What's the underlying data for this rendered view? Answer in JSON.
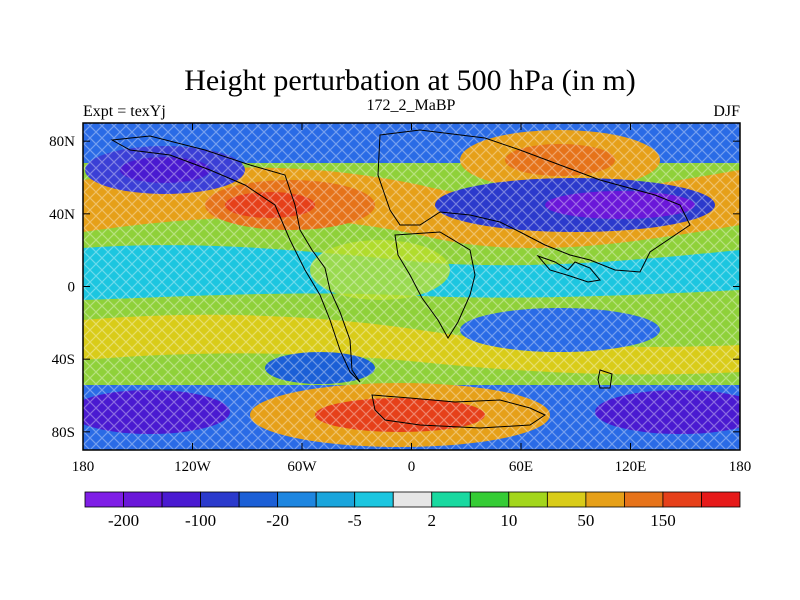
{
  "title": "Height perturbation at 500 hPa (in m)",
  "left_label": "Expt = texYj",
  "center_label": "172_2_MaBP",
  "right_label": "DJF",
  "x_ticks": [
    {
      "lon": -180,
      "label": "180"
    },
    {
      "lon": -120,
      "label": "120W"
    },
    {
      "lon": -60,
      "label": "60W"
    },
    {
      "lon": 0,
      "label": "0"
    },
    {
      "lon": 60,
      "label": "60E"
    },
    {
      "lon": 120,
      "label": "120E"
    },
    {
      "lon": 180,
      "label": "180"
    }
  ],
  "y_ticks": [
    {
      "lat": 80,
      "label": "80N"
    },
    {
      "lat": 40,
      "label": "40N"
    },
    {
      "lat": 0,
      "label": "0"
    },
    {
      "lat": -40,
      "label": "40S"
    },
    {
      "lat": -80,
      "label": "80S"
    }
  ],
  "colorbar": {
    "colors": [
      "#7f1ee6",
      "#6a17d9",
      "#4a1ad1",
      "#2b3acc",
      "#1b5fd6",
      "#1e86e0",
      "#1aa5dc",
      "#1cc6e0",
      "#e6e6e6",
      "#19d9a0",
      "#35cc35",
      "#a3d61c",
      "#d9cc19",
      "#e6a019",
      "#e6731a",
      "#e6401a",
      "#e61a1a"
    ],
    "labels": [
      "-200",
      "-100",
      "-20",
      "-5",
      "2",
      "10",
      "50",
      "150"
    ]
  },
  "chart_data": {
    "type": "heatmap",
    "title": "Height perturbation at 500 hPa (in m)",
    "subtitle": "172_2_MaBP",
    "xlim": [
      -180,
      180
    ],
    "ylim": [
      -90,
      90
    ],
    "levels": [
      -200,
      -100,
      -20,
      -5,
      2,
      10,
      50,
      150
    ],
    "features": [
      {
        "lon": -135,
        "lat": 65,
        "sign": "neg"
      },
      {
        "lon": -65,
        "lat": 43,
        "sign": "pos"
      },
      {
        "lon": 60,
        "lat": 75,
        "sign": "pos"
      },
      {
        "lon": 100,
        "lat": 45,
        "sign": "neg"
      },
      {
        "lon": 10,
        "lat": -70,
        "sign": "pos"
      },
      {
        "lon": -150,
        "lat": -70,
        "sign": "neg"
      },
      {
        "lon": 150,
        "lat": -70,
        "sign": "neg"
      }
    ]
  }
}
